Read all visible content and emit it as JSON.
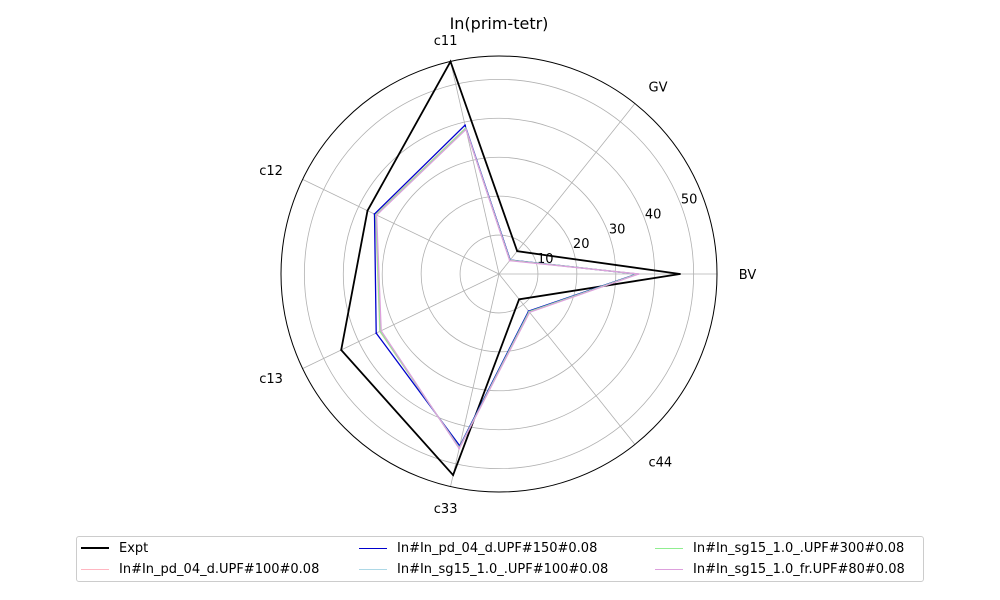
{
  "chart_data": {
    "type": "radar",
    "title": "In(prim-tetr)",
    "axes": [
      "BV",
      "GV",
      "c11",
      "c12",
      "c13",
      "c33",
      "c44"
    ],
    "r_ticks": [
      10,
      20,
      30,
      40,
      50
    ],
    "r_max": 56,
    "grid": true,
    "legend_position": "bottom",
    "series": [
      {
        "name": "Expt",
        "color": "#000000",
        "values": [
          46.5,
          7.5,
          56.0,
          37.5,
          45.0,
          53.0,
          8.3
        ]
      },
      {
        "name": "In#In_pd_04_d.UPF#100#0.08",
        "color": "#ffb6c1",
        "values": [
          35.6,
          4.5,
          38.5,
          35.2,
          34.0,
          45.8,
          12.4
        ]
      },
      {
        "name": "In#In_pd_04_d.UPF#150#0.08",
        "color": "#0000cd",
        "values": [
          35.4,
          4.6,
          39.2,
          35.5,
          35.0,
          45.3,
          12.2
        ]
      },
      {
        "name": "In#In_sg15_1.0_.UPF#100#0.08",
        "color": "#add8e6",
        "values": [
          35.7,
          4.5,
          38.4,
          35.0,
          33.8,
          45.9,
          12.5
        ]
      },
      {
        "name": "In#In_sg15_1.0_.UPF#300#0.08",
        "color": "#90ee90",
        "values": [
          35.6,
          4.5,
          38.4,
          35.1,
          33.9,
          45.8,
          12.4
        ]
      },
      {
        "name": "In#In_sg15_1.0_fr.UPF#80#0.08",
        "color": "#dda0dd",
        "values": [
          35.9,
          4.4,
          38.1,
          34.9,
          33.6,
          46.0,
          12.6
        ]
      }
    ]
  }
}
